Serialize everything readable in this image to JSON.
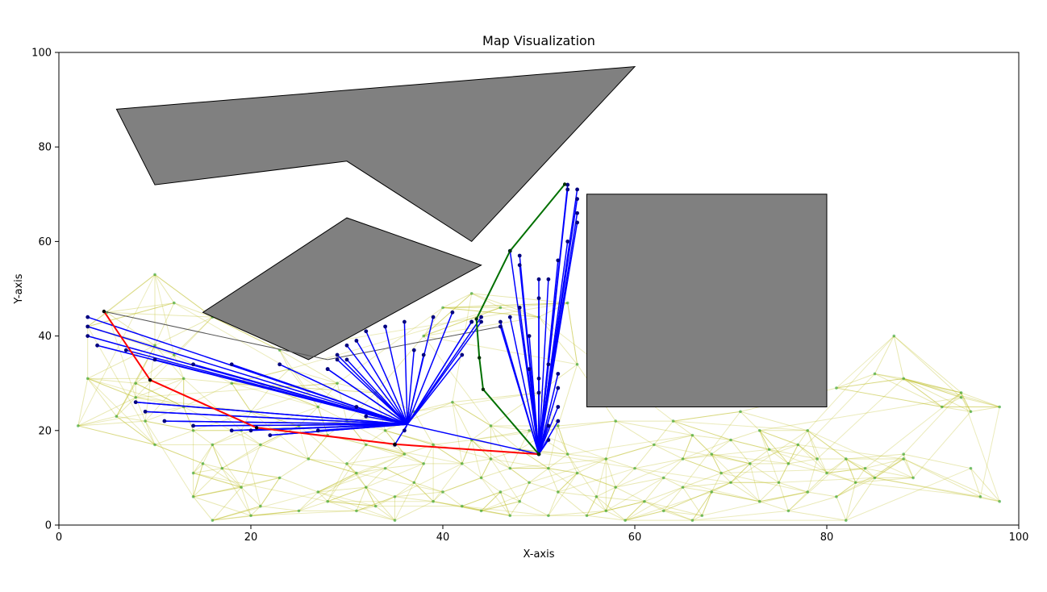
{
  "chart_data": {
    "type": "scatter",
    "title": "Map Visualization",
    "xlabel": "X-axis",
    "ylabel": "Y-axis",
    "xlim": [
      0,
      100
    ],
    "ylim": [
      0,
      100
    ],
    "xticks": [
      "0",
      "20",
      "40",
      "60",
      "80",
      "100"
    ],
    "yticks": [
      "0",
      "20",
      "40",
      "60",
      "80",
      "100"
    ],
    "grid": false,
    "colors": {
      "obstacle": "#808080",
      "roadmap": "#bcbd22",
      "sample": "#2ca02c",
      "tree": "#0000ff",
      "node": "#000080",
      "path_red": "#ff0000",
      "path_green": "#007000",
      "gray_link": "#555555"
    },
    "obstacles": [
      {
        "name": "top-wedge",
        "points": [
          [
            6,
            88
          ],
          [
            60,
            97
          ],
          [
            43,
            60
          ],
          [
            30,
            77
          ],
          [
            10,
            72
          ]
        ]
      },
      {
        "name": "middle-quad",
        "points": [
          [
            15,
            45
          ],
          [
            30,
            65
          ],
          [
            44,
            55
          ],
          [
            26,
            35
          ]
        ]
      },
      {
        "name": "right-rect",
        "points": [
          [
            55,
            70
          ],
          [
            80,
            70
          ],
          [
            80,
            25
          ],
          [
            55,
            25
          ]
        ]
      }
    ],
    "samples": [
      [
        2,
        21
      ],
      [
        3,
        31
      ],
      [
        3,
        42
      ],
      [
        5,
        45
      ],
      [
        6,
        23
      ],
      [
        8,
        30
      ],
      [
        8,
        27
      ],
      [
        9,
        22
      ],
      [
        10,
        17
      ],
      [
        10,
        38
      ],
      [
        10,
        53
      ],
      [
        12,
        47
      ],
      [
        12,
        36
      ],
      [
        13,
        31
      ],
      [
        13,
        25
      ],
      [
        14,
        11
      ],
      [
        14,
        20
      ],
      [
        14,
        6
      ],
      [
        15,
        13
      ],
      [
        16,
        44
      ],
      [
        16,
        17
      ],
      [
        16,
        1
      ],
      [
        17,
        12
      ],
      [
        18,
        30
      ],
      [
        19,
        8
      ],
      [
        19,
        20
      ],
      [
        20,
        2
      ],
      [
        20,
        24
      ],
      [
        21,
        4
      ],
      [
        21,
        17
      ],
      [
        22,
        29
      ],
      [
        23,
        37
      ],
      [
        23,
        10
      ],
      [
        24,
        33
      ],
      [
        25,
        3
      ],
      [
        25,
        21
      ],
      [
        26,
        14
      ],
      [
        27,
        25
      ],
      [
        27,
        7
      ],
      [
        28,
        19
      ],
      [
        28,
        5
      ],
      [
        29,
        30
      ],
      [
        30,
        13
      ],
      [
        30,
        22
      ],
      [
        31,
        11
      ],
      [
        31,
        3
      ],
      [
        32,
        17
      ],
      [
        32,
        8
      ],
      [
        33,
        28
      ],
      [
        33,
        4
      ],
      [
        34,
        12
      ],
      [
        34,
        20
      ],
      [
        35,
        1
      ],
      [
        35,
        6
      ],
      [
        36,
        15
      ],
      [
        37,
        9
      ],
      [
        37,
        24
      ],
      [
        38,
        13
      ],
      [
        38,
        40
      ],
      [
        39,
        17
      ],
      [
        39,
        5
      ],
      [
        40,
        7
      ],
      [
        40,
        46
      ],
      [
        41,
        26
      ],
      [
        42,
        13
      ],
      [
        42,
        4
      ],
      [
        43,
        18
      ],
      [
        43,
        49
      ],
      [
        44,
        10
      ],
      [
        44,
        3
      ],
      [
        45,
        21
      ],
      [
        45,
        14
      ],
      [
        46,
        7
      ],
      [
        46,
        46
      ],
      [
        47,
        12
      ],
      [
        47,
        2
      ],
      [
        48,
        5
      ],
      [
        48,
        16
      ],
      [
        49,
        20
      ],
      [
        49,
        9
      ],
      [
        50,
        28
      ],
      [
        50,
        44
      ],
      [
        51,
        12
      ],
      [
        51,
        2
      ],
      [
        52,
        7
      ],
      [
        52,
        21
      ],
      [
        53,
        15
      ],
      [
        53,
        47
      ],
      [
        54,
        34
      ],
      [
        54,
        11
      ],
      [
        55,
        2
      ],
      [
        56,
        6
      ],
      [
        57,
        14
      ],
      [
        57,
        3
      ],
      [
        58,
        8
      ],
      [
        58,
        22
      ],
      [
        59,
        1
      ],
      [
        60,
        12
      ],
      [
        61,
        5
      ],
      [
        62,
        17
      ],
      [
        63,
        10
      ],
      [
        63,
        3
      ],
      [
        64,
        22
      ],
      [
        65,
        14
      ],
      [
        65,
        8
      ],
      [
        66,
        19
      ],
      [
        66,
        1
      ],
      [
        67,
        2
      ],
      [
        68,
        7
      ],
      [
        68,
        15
      ],
      [
        69,
        11
      ],
      [
        70,
        18
      ],
      [
        70,
        9
      ],
      [
        71,
        24
      ],
      [
        72,
        13
      ],
      [
        73,
        5
      ],
      [
        73,
        20
      ],
      [
        74,
        16
      ],
      [
        75,
        9
      ],
      [
        76,
        13
      ],
      [
        76,
        3
      ],
      [
        77,
        17
      ],
      [
        78,
        7
      ],
      [
        78,
        20
      ],
      [
        79,
        14
      ],
      [
        80,
        11
      ],
      [
        81,
        29
      ],
      [
        81,
        6
      ],
      [
        82,
        1
      ],
      [
        82,
        14
      ],
      [
        83,
        9
      ],
      [
        84,
        12
      ],
      [
        85,
        10
      ],
      [
        85,
        32
      ],
      [
        87,
        40
      ],
      [
        88,
        31
      ],
      [
        88,
        15
      ],
      [
        88,
        14
      ],
      [
        89,
        10
      ],
      [
        92,
        25
      ],
      [
        94,
        28
      ],
      [
        94,
        27
      ],
      [
        95,
        24
      ],
      [
        95,
        12
      ],
      [
        96,
        6
      ],
      [
        98,
        25
      ],
      [
        98,
        5
      ]
    ],
    "tree_nodes": [
      [
        3,
        42
      ],
      [
        3,
        40
      ],
      [
        3,
        44
      ],
      [
        4,
        38
      ],
      [
        7,
        37
      ],
      [
        8,
        26
      ],
      [
        9,
        24
      ],
      [
        10,
        35
      ],
      [
        11,
        22
      ],
      [
        14,
        34
      ],
      [
        14,
        21
      ],
      [
        18,
        34
      ],
      [
        18,
        20
      ],
      [
        22,
        19
      ],
      [
        23,
        34
      ],
      [
        27,
        20
      ],
      [
        28,
        33
      ],
      [
        29,
        35
      ],
      [
        29,
        36
      ],
      [
        30,
        38
      ],
      [
        31,
        39
      ],
      [
        32,
        41
      ],
      [
        34,
        42
      ],
      [
        36,
        43
      ],
      [
        39,
        44
      ],
      [
        41,
        45
      ],
      [
        44,
        44
      ],
      [
        43,
        43
      ],
      [
        46,
        43
      ],
      [
        46,
        42
      ],
      [
        47,
        44
      ],
      [
        48,
        46
      ],
      [
        49,
        40
      ],
      [
        50,
        48
      ],
      [
        50,
        52
      ],
      [
        48,
        55
      ],
      [
        48,
        57
      ],
      [
        47,
        58
      ],
      [
        51,
        52
      ],
      [
        52,
        56
      ],
      [
        53,
        60
      ],
      [
        54,
        64
      ],
      [
        54,
        66
      ],
      [
        54,
        69
      ],
      [
        54,
        71
      ],
      [
        53,
        72
      ],
      [
        53,
        71
      ],
      [
        51,
        34
      ],
      [
        52,
        32
      ],
      [
        52,
        29
      ],
      [
        52,
        25
      ],
      [
        52,
        22
      ],
      [
        51,
        18
      ],
      [
        51,
        21
      ],
      [
        50,
        28
      ],
      [
        50,
        31
      ],
      [
        49,
        33
      ],
      [
        44,
        43
      ],
      [
        43,
        43
      ],
      [
        42,
        36
      ],
      [
        38,
        36
      ],
      [
        37,
        37
      ],
      [
        30,
        35
      ],
      [
        28,
        33
      ],
      [
        31,
        25
      ],
      [
        32,
        23
      ],
      [
        35,
        17
      ],
      [
        36,
        20
      ],
      [
        20,
        20
      ],
      [
        50,
        15
      ]
    ],
    "hub_a": [
      36.3,
      21.3
    ],
    "hub_b": [
      50.0,
      15.0
    ],
    "red_path": [
      [
        4.7,
        45.2
      ],
      [
        9.5,
        30.7
      ],
      [
        20.6,
        20.6
      ],
      [
        35.0,
        17.1
      ],
      [
        50.0,
        15.0
      ]
    ],
    "green_path": [
      [
        50.0,
        15.0
      ],
      [
        44.2,
        28.7
      ],
      [
        43.8,
        35.4
      ],
      [
        43.5,
        43.6
      ],
      [
        47.0,
        58.0
      ],
      [
        52.7,
        72.1
      ]
    ],
    "gray_links": [
      [
        [
          4.7,
          45.2
        ],
        [
          28.0,
          35.0
        ]
      ],
      [
        [
          28.0,
          35.0
        ],
        [
          46.0,
          42.0
        ]
      ]
    ]
  }
}
